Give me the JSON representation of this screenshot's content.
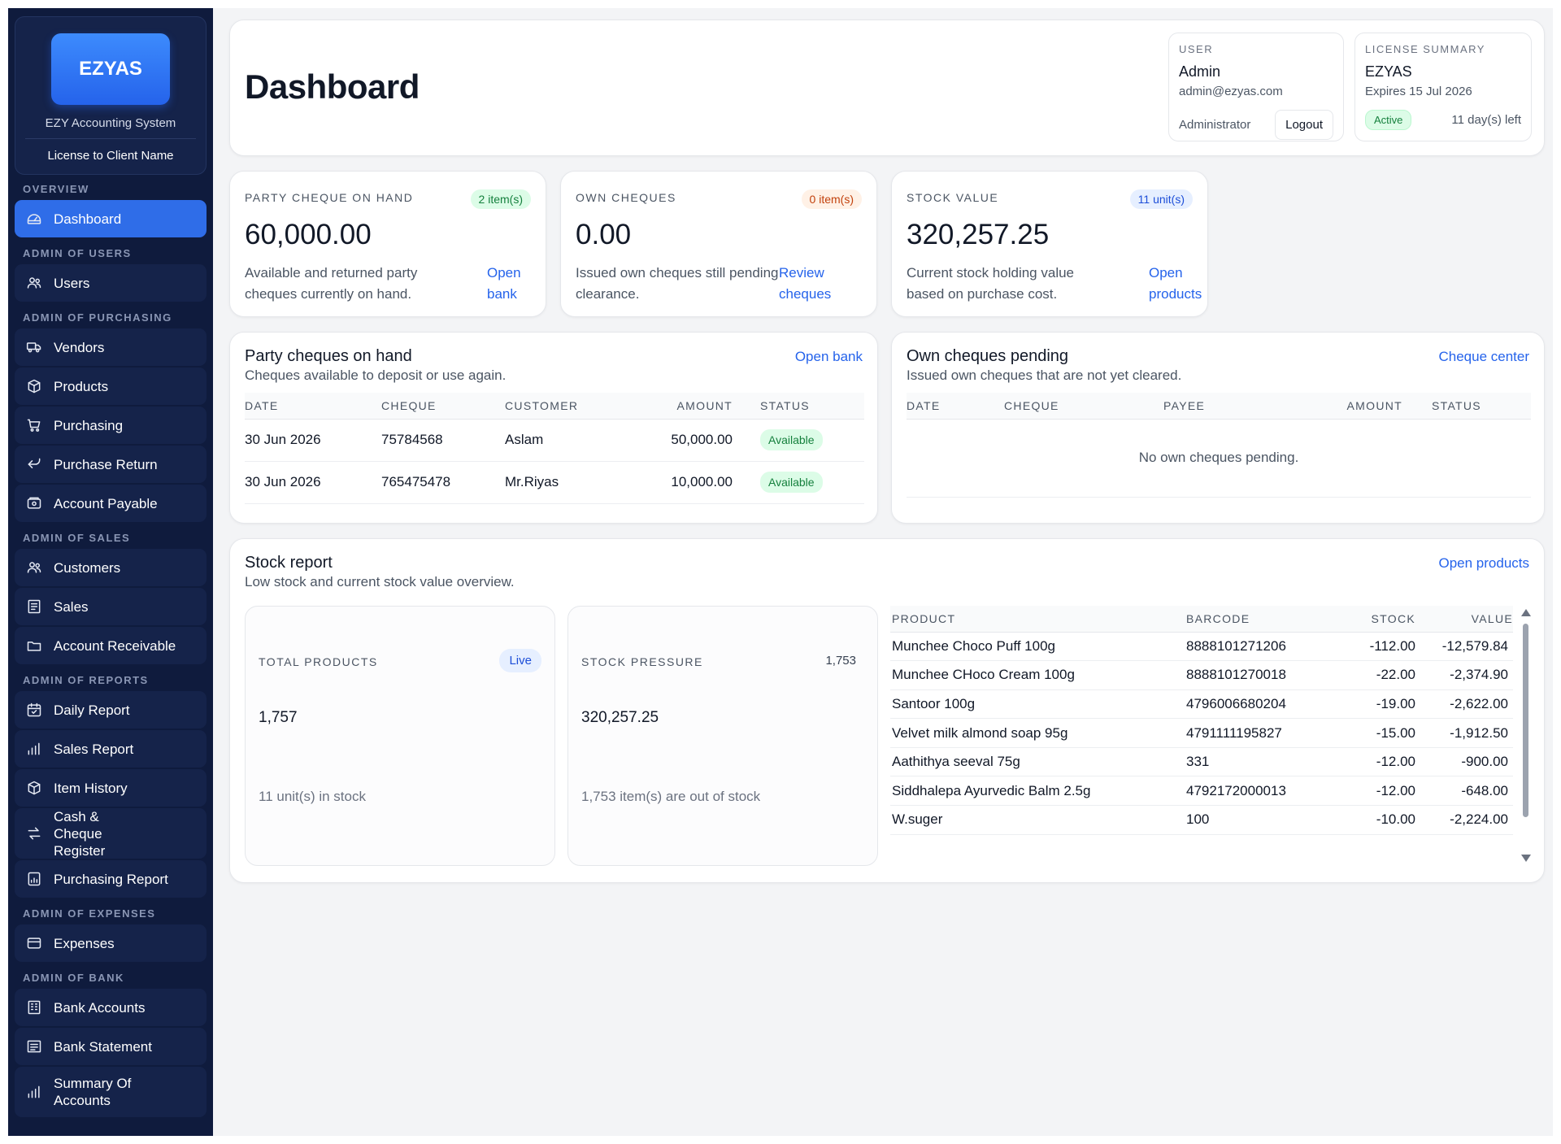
{
  "brand": {
    "logo_text": "EZYAS",
    "subtitle": "EZY Accounting System",
    "license": "License to Client Name"
  },
  "sidebar": [
    {
      "section": "OVERVIEW",
      "items": [
        {
          "label": "Dashboard",
          "icon": "dashboard-icon",
          "active": true
        }
      ]
    },
    {
      "section": "ADMIN OF USERS",
      "items": [
        {
          "label": "Users",
          "icon": "users-icon"
        }
      ]
    },
    {
      "section": "ADMIN OF PURCHASING",
      "items": [
        {
          "label": "Vendors",
          "icon": "truck-icon"
        },
        {
          "label": "Products",
          "icon": "box-icon"
        },
        {
          "label": "Purchasing",
          "icon": "cart-icon"
        },
        {
          "label": "Purchase Return",
          "icon": "return-arrow-icon"
        },
        {
          "label": "Account Payable",
          "icon": "wallet-icon"
        }
      ]
    },
    {
      "section": "ADMIN OF SALES",
      "items": [
        {
          "label": "Customers",
          "icon": "users-icon"
        },
        {
          "label": "Sales",
          "icon": "receipt-icon"
        },
        {
          "label": "Account Receivable",
          "icon": "folder-icon"
        }
      ]
    },
    {
      "section": "ADMIN OF REPORTS",
      "items": [
        {
          "label": "Daily Report",
          "icon": "calendar-icon"
        },
        {
          "label": "Sales Report",
          "icon": "bar-chart-icon"
        },
        {
          "label": "Item History",
          "icon": "box-icon"
        },
        {
          "label": "Cash & Cheque Register",
          "icon": "transfer-icon",
          "tall": true
        },
        {
          "label": "Purchasing Report",
          "icon": "report-icon"
        }
      ]
    },
    {
      "section": "ADMIN OF EXPENSES",
      "items": [
        {
          "label": "Expenses",
          "icon": "card-icon"
        }
      ]
    },
    {
      "section": "ADMIN OF BANK",
      "items": [
        {
          "label": "Bank Accounts",
          "icon": "bank-icon"
        },
        {
          "label": "Bank Statement",
          "icon": "statement-icon"
        },
        {
          "label": "Summary Of Accounts",
          "icon": "bar-chart-icon",
          "tall": true
        }
      ]
    }
  ],
  "header": {
    "title": "Dashboard",
    "user": {
      "caption": "USER",
      "name": "Admin",
      "email": "admin@ezyas.com",
      "role": "Administrator",
      "logout_label": "Logout"
    },
    "license": {
      "caption": "LICENSE SUMMARY",
      "name": "EZYAS",
      "expires": "Expires 15 Jul 2026",
      "status": "Active",
      "days_left": "11 day(s) left"
    }
  },
  "kpis": [
    {
      "caption": "PARTY CHEQUE ON HAND",
      "badge": "2 item(s)",
      "badge_color": "green",
      "value": "60,000.00",
      "desc": "Available and returned party cheques currently on hand.",
      "link": "Open bank"
    },
    {
      "caption": "OWN CHEQUES",
      "badge": "0 item(s)",
      "badge_color": "orange",
      "value": "0.00",
      "desc": "Issued own cheques still pending clearance.",
      "link": "Review cheques"
    },
    {
      "caption": "STOCK VALUE",
      "badge": "11 unit(s)",
      "badge_color": "blue",
      "value": "320,257.25",
      "desc": "Current stock holding value based on purchase cost.",
      "link": "Open products"
    }
  ],
  "party_cheques": {
    "title": "Party cheques on hand",
    "subtitle": "Cheques available to deposit or use again.",
    "link": "Open bank",
    "columns": [
      "DATE",
      "CHEQUE",
      "CUSTOMER",
      "AMOUNT",
      "STATUS"
    ],
    "rows": [
      {
        "date": "30 Jun 2026",
        "cheque": "75784568",
        "customer": "Aslam",
        "amount": "50,000.00",
        "status": "Available"
      },
      {
        "date": "30 Jun 2026",
        "cheque": "765475478",
        "customer": "Mr.Riyas",
        "amount": "10,000.00",
        "status": "Available"
      }
    ]
  },
  "own_cheques": {
    "title": "Own cheques pending",
    "subtitle": "Issued own cheques that are not yet cleared.",
    "link": "Cheque center",
    "columns": [
      "DATE",
      "CHEQUE",
      "PAYEE",
      "AMOUNT",
      "STATUS"
    ],
    "empty": "No own cheques pending."
  },
  "stock_report": {
    "title": "Stock report",
    "subtitle": "Low stock and current stock value overview.",
    "link": "Open products",
    "total_products": {
      "caption": "TOTAL PRODUCTS",
      "badge": "Live",
      "value": "1,757",
      "note": "11 unit(s) in stock"
    },
    "stock_pressure": {
      "caption": "STOCK PRESSURE",
      "count": "1,753",
      "value": "320,257.25",
      "note": "1,753 item(s) are out of stock"
    },
    "columns": [
      "PRODUCT",
      "BARCODE",
      "STOCK",
      "VALUE"
    ],
    "rows": [
      {
        "product": "Munchee Choco Puff 100g",
        "barcode": "8888101271206",
        "stock": "-112.00",
        "value": "-12,579.84"
      },
      {
        "product": "Munchee CHoco Cream 100g",
        "barcode": "8888101270018",
        "stock": "-22.00",
        "value": "-2,374.90"
      },
      {
        "product": "Santoor 100g",
        "barcode": "4796006680204",
        "stock": "-19.00",
        "value": "-2,622.00"
      },
      {
        "product": "Velvet milk almond soap 95g",
        "barcode": "4791111195827",
        "stock": "-15.00",
        "value": "-1,912.50"
      },
      {
        "product": "Aathithya seeval 75g",
        "barcode": "331",
        "stock": "-12.00",
        "value": "-900.00"
      },
      {
        "product": "Siddhalepa Ayurvedic Balm 2.5g",
        "barcode": "4792172000013",
        "stock": "-12.00",
        "value": "-648.00"
      },
      {
        "product": "W.suger",
        "barcode": "100",
        "stock": "-10.00",
        "value": "-2,224.00"
      }
    ]
  }
}
